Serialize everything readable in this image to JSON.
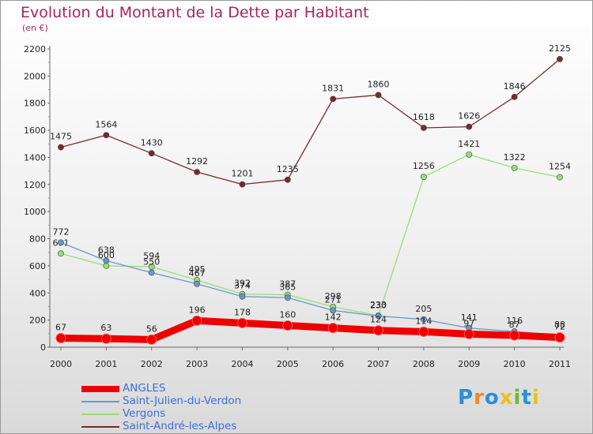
{
  "title": "Evolution du Montant de la Dette par Habitant",
  "unit": "(en €)",
  "logo": "Proxiti",
  "chart_data": {
    "type": "line",
    "x": [
      "2000",
      "2001",
      "2002",
      "2003",
      "2004",
      "2005",
      "2006",
      "2007",
      "2008",
      "2009",
      "2010",
      "2011"
    ],
    "ylim": [
      0,
      2200
    ],
    "yticks": [
      0,
      200,
      400,
      600,
      800,
      1000,
      1200,
      1400,
      1600,
      1800,
      2000,
      2200
    ],
    "grid": false,
    "legend_position": "bottom",
    "series": [
      {
        "name": "ANGLES",
        "color": "#ee0000",
        "values": [
          67,
          63,
          56,
          196,
          178,
          160,
          142,
          124,
          114,
          97,
          87,
          72
        ]
      },
      {
        "name": "Saint-Julien-du-Verdon",
        "color": "#6699cc",
        "values": [
          772,
          638,
          550,
          467,
          374,
          365,
          271,
          230,
          205,
          141,
          116,
          88
        ]
      },
      {
        "name": "Vergons",
        "color": "#99dd77",
        "values": [
          691,
          600,
          594,
          495,
          392,
          387,
          298,
          233,
          1256,
          1421,
          1322,
          1254
        ]
      },
      {
        "name": "Saint-André-les-Alpes",
        "color": "#7a2a2a",
        "values": [
          1475,
          1564,
          1430,
          1292,
          1201,
          1235,
          1831,
          1860,
          1618,
          1626,
          1846,
          2125
        ]
      }
    ]
  }
}
